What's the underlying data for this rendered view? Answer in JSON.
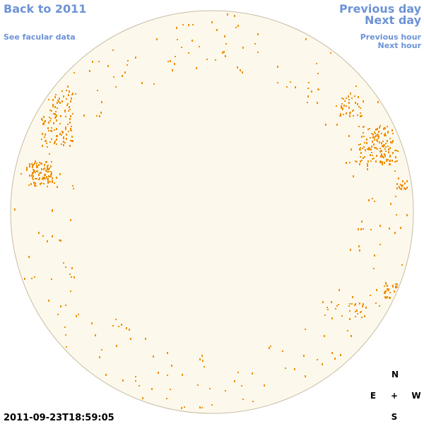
{
  "header": {
    "back_link": "Back to 2011",
    "facular_link": "See facular data",
    "previous_day": "Previous day",
    "next_day": "Next day",
    "previous_hour": "Previous hour",
    "next_hour": "Next hour"
  },
  "footer": {
    "timestamp": "2011-09-23T18:59:05"
  },
  "compass": {
    "north": "N",
    "east": "E",
    "center": "+",
    "west": "W",
    "south": "S"
  }
}
